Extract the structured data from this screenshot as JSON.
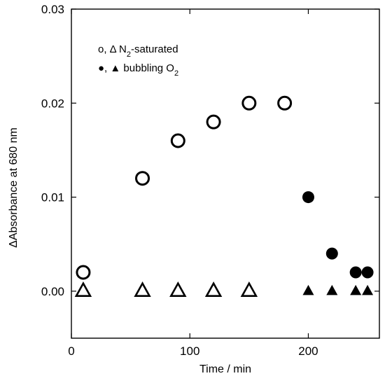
{
  "chart_data": {
    "type": "scatter",
    "xlabel": "Time / min",
    "ylabel": "ΔAbsorbance at 680 nm",
    "xlim": [
      0,
      260
    ],
    "ylim": [
      -0.005,
      0.03
    ],
    "xticks": [
      0,
      100,
      200
    ],
    "yticks": [
      0.0,
      0.01,
      0.02,
      0.03
    ],
    "ytick_labels": [
      "0.00",
      "0.01",
      "0.02",
      "0.03"
    ],
    "grid": false,
    "legend_position": "top-left",
    "legend": [
      {
        "symbols": "o, Δ",
        "text_main": "N",
        "text_sub": "2",
        "text_rest": "-saturated"
      },
      {
        "symbols": "●, ▲",
        "text_main": "bubbling O",
        "text_sub": "2",
        "text_rest": ""
      }
    ],
    "series": [
      {
        "marker": "open-circle",
        "x": [
          10,
          60,
          90,
          120,
          150,
          180
        ],
        "y": [
          0.002,
          0.012,
          0.016,
          0.018,
          0.02,
          0.02
        ]
      },
      {
        "marker": "open-triangle",
        "x": [
          10,
          60,
          90,
          120,
          150
        ],
        "y": [
          0,
          0,
          0,
          0,
          0
        ]
      },
      {
        "marker": "filled-circle",
        "x": [
          200,
          220,
          240,
          250
        ],
        "y": [
          0.01,
          0.004,
          0.002,
          0.002
        ]
      },
      {
        "marker": "filled-triangle",
        "x": [
          200,
          220,
          240,
          250
        ],
        "y": [
          0,
          0,
          0,
          0
        ]
      }
    ]
  }
}
